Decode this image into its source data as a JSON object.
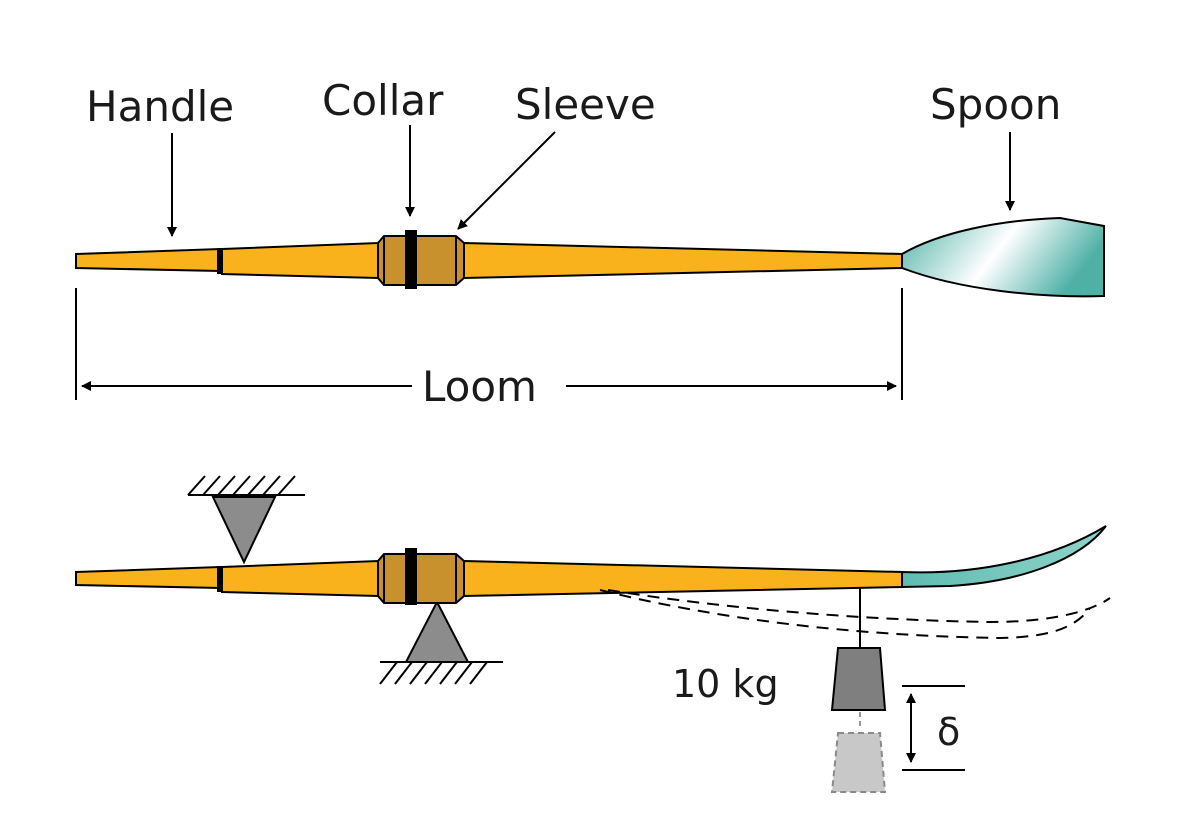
{
  "labels": {
    "handle": "Handle",
    "collar": "Collar",
    "sleeve": "Sleeve",
    "spoon": "Spoon",
    "loom": "Loom",
    "mass": "10 kg",
    "deflection": "δ"
  },
  "colors": {
    "shaft": "#f9b21b",
    "sleeve": "#c8912d",
    "blade": "#6cc3b9",
    "support": "#8c8c8c",
    "weight": "#7f7f7f",
    "weight_ghost": "#c8c8c8",
    "stroke": "#000000"
  }
}
